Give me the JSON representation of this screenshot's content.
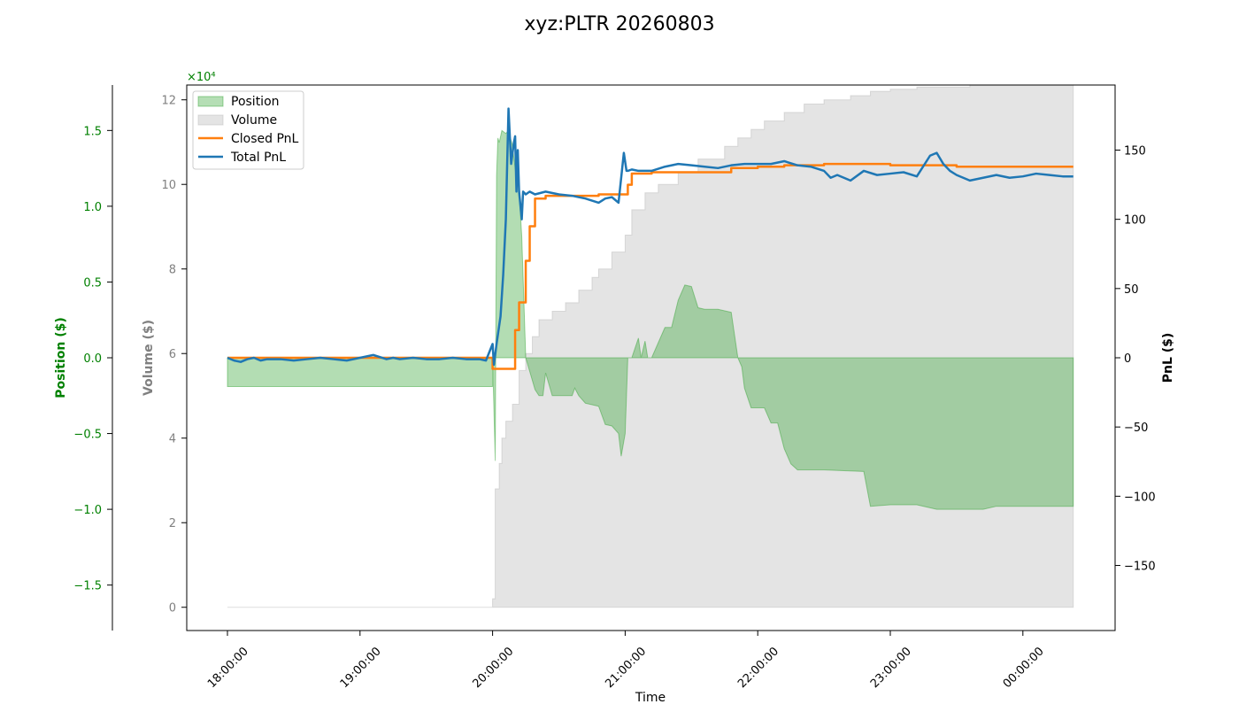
{
  "chart_data": {
    "type": "area",
    "title": "xyz:PLTR 20260803",
    "xlabel": "Time",
    "x_ticks": [
      "18:00:00",
      "19:00:00",
      "20:00:00",
      "21:00:00",
      "22:00:00",
      "23:00:00",
      "00:00:00"
    ],
    "axes": {
      "position": {
        "label": "Position ($)",
        "ticks": [
          "−1.5",
          "−1.0",
          "−0.5",
          "0.0",
          "0.5",
          "1.0",
          "1.5"
        ],
        "tick_values": [
          -1.5,
          -1.0,
          -0.5,
          0.0,
          0.5,
          1.0,
          1.5
        ],
        "ylim": [
          -1.8,
          1.8
        ],
        "multiplier": "×10⁴",
        "color": "#008000"
      },
      "volume": {
        "label": "Volume ($)",
        "ticks": [
          "0",
          "2",
          "4",
          "6",
          "8",
          "10",
          "12"
        ],
        "tick_values": [
          0,
          2,
          4,
          6,
          8,
          10,
          12
        ],
        "ylim": [
          -0.55,
          12.35
        ],
        "multiplier": "×10⁴",
        "color": "#808080"
      },
      "pnl": {
        "label": "PnL ($)",
        "ticks": [
          "−150",
          "−100",
          "−50",
          "0",
          "50",
          "100",
          "150"
        ],
        "tick_values": [
          -150,
          -100,
          -50,
          0,
          50,
          100,
          150
        ],
        "ylim": [
          -197,
          197
        ],
        "color": "#000000"
      }
    },
    "legend": {
      "placement": "upper-left",
      "items": [
        "Position",
        "Volume",
        "Closed PnL",
        "Total PnL"
      ]
    },
    "series": [
      {
        "name": "Position",
        "kind": "area",
        "color": "#2ca02c",
        "x_hours": [
          0,
          2,
          2,
          2.02,
          2.03,
          2.04,
          2.05,
          2.07,
          2.1,
          2.12,
          2.15,
          2.17,
          2.2,
          2.22,
          2.25,
          2.3,
          2.32,
          2.35,
          2.38,
          2.4,
          2.45,
          2.5,
          2.55,
          2.6,
          2.62,
          2.65,
          2.7,
          2.75,
          2.8,
          2.85,
          2.9,
          2.95,
          2.97,
          3,
          3.02,
          3.05,
          3.1,
          3.12,
          3.15,
          3.17,
          3.2,
          3.3,
          3.35,
          3.4,
          3.45,
          3.5,
          3.55,
          3.6,
          3.7,
          3.8,
          3.85,
          3.88,
          3.9,
          3.95,
          4,
          4.05,
          4.1,
          4.15,
          4.2,
          4.25,
          4.3,
          4.5,
          4.8,
          4.85,
          5,
          5.2,
          5.35,
          5.5,
          5.7,
          5.8,
          6,
          6.25,
          6.38
        ],
        "values": [
          -1900,
          -1900,
          0,
          -6800,
          12000,
          14500,
          14200,
          15000,
          14800,
          15000,
          14000,
          12500,
          11000,
          8000,
          0,
          -1500,
          -2100,
          -2500,
          -2500,
          -1000,
          -2500,
          -2500,
          -2500,
          -2500,
          -2000,
          -2500,
          -3000,
          -3100,
          -3200,
          -4400,
          -4500,
          -5000,
          -6500,
          -5000,
          0,
          0,
          1300,
          0,
          1100,
          0,
          0,
          2000,
          2000,
          3800,
          4800,
          4700,
          3300,
          3200,
          3200,
          3000,
          0,
          -600,
          -2000,
          -3300,
          -3300,
          -3300,
          -4300,
          -4300,
          -6000,
          -7000,
          -7400,
          -7400,
          -7500,
          -9800,
          -9700,
          -9700,
          -10000,
          -10000,
          -10000,
          -9800,
          -9800,
          -9800,
          -9800
        ]
      },
      {
        "name": "Volume",
        "kind": "area",
        "color": "#bbbbbb",
        "x_hours": [
          0,
          2,
          2.02,
          2.05,
          2.07,
          2.1,
          2.15,
          2.2,
          2.25,
          2.3,
          2.35,
          2.45,
          2.55,
          2.65,
          2.75,
          2.8,
          2.9,
          3,
          3.05,
          3.15,
          3.25,
          3.4,
          3.55,
          3.75,
          3.85,
          3.95,
          4.05,
          4.2,
          4.35,
          4.5,
          4.7,
          4.85,
          5,
          5.2,
          5.35,
          5.6,
          5.8,
          6,
          6.2,
          6.38
        ],
        "values": [
          0,
          0.2,
          2.8,
          3.4,
          4.0,
          4.4,
          4.8,
          5.6,
          6.0,
          6.4,
          6.8,
          7.0,
          7.2,
          7.5,
          7.8,
          8.0,
          8.4,
          8.8,
          9.4,
          9.8,
          10.0,
          10.3,
          10.6,
          10.9,
          11.1,
          11.3,
          11.5,
          11.7,
          11.9,
          12.0,
          12.1,
          12.2,
          12.25,
          12.3,
          12.3,
          12.35,
          12.35,
          12.35,
          12.35,
          12.35
        ]
      },
      {
        "name": "Closed PnL",
        "kind": "step-line",
        "color": "#ff7f0e",
        "x_hours": [
          0,
          2,
          2.17,
          2.2,
          2.25,
          2.28,
          2.32,
          2.4,
          2.6,
          2.8,
          3,
          3.02,
          3.05,
          3.1,
          3.2,
          3.6,
          3.8,
          4,
          4.2,
          4.5,
          5,
          5.5,
          6,
          6.38
        ],
        "values": [
          0,
          -8,
          20,
          40,
          70,
          95,
          115,
          117,
          117,
          118,
          118,
          125,
          133,
          133,
          134,
          134,
          137,
          138,
          139,
          140,
          139,
          138,
          138,
          138
        ]
      },
      {
        "name": "Total PnL",
        "kind": "line",
        "color": "#1f77b4",
        "x_hours": [
          0,
          0.05,
          0.1,
          0.15,
          0.2,
          0.25,
          0.3,
          0.4,
          0.5,
          0.6,
          0.7,
          0.8,
          0.9,
          1,
          1.1,
          1.2,
          1.25,
          1.3,
          1.4,
          1.5,
          1.6,
          1.7,
          1.8,
          1.9,
          1.95,
          2,
          2.01,
          2.03,
          2.06,
          2.08,
          2.1,
          2.12,
          2.14,
          2.16,
          2.17,
          2.18,
          2.19,
          2.2,
          2.21,
          2.22,
          2.23,
          2.25,
          2.28,
          2.32,
          2.4,
          2.5,
          2.6,
          2.7,
          2.8,
          2.85,
          2.9,
          2.95,
          2.99,
          3.01,
          3.02,
          3.05,
          3.1,
          3.2,
          3.3,
          3.4,
          3.5,
          3.6,
          3.7,
          3.8,
          3.9,
          4,
          4.1,
          4.2,
          4.3,
          4.4,
          4.5,
          4.55,
          4.6,
          4.7,
          4.8,
          4.9,
          5,
          5.1,
          5.2,
          5.3,
          5.35,
          5.4,
          5.45,
          5.5,
          5.6,
          5.7,
          5.8,
          5.9,
          6,
          6.1,
          6.2,
          6.3,
          6.38
        ],
        "values": [
          0,
          -2,
          -3,
          -1,
          0,
          -2,
          -1,
          -1,
          -2,
          -1,
          0,
          -1,
          -2,
          0,
          2,
          -1,
          0,
          -1,
          0,
          -1,
          -1,
          0,
          -1,
          -1,
          -2,
          10,
          -5,
          10,
          30,
          60,
          100,
          180,
          140,
          155,
          160,
          120,
          150,
          120,
          110,
          100,
          120,
          118,
          120,
          118,
          120,
          118,
          117,
          115,
          112,
          115,
          116,
          112,
          148,
          135,
          135,
          136,
          135,
          135,
          138,
          140,
          139,
          138,
          137,
          139,
          140,
          140,
          140,
          142,
          139,
          138,
          135,
          130,
          132,
          128,
          135,
          132,
          133,
          134,
          131,
          146,
          148,
          140,
          135,
          132,
          128,
          130,
          132,
          130,
          131,
          133,
          132,
          131,
          131
        ]
      }
    ]
  }
}
